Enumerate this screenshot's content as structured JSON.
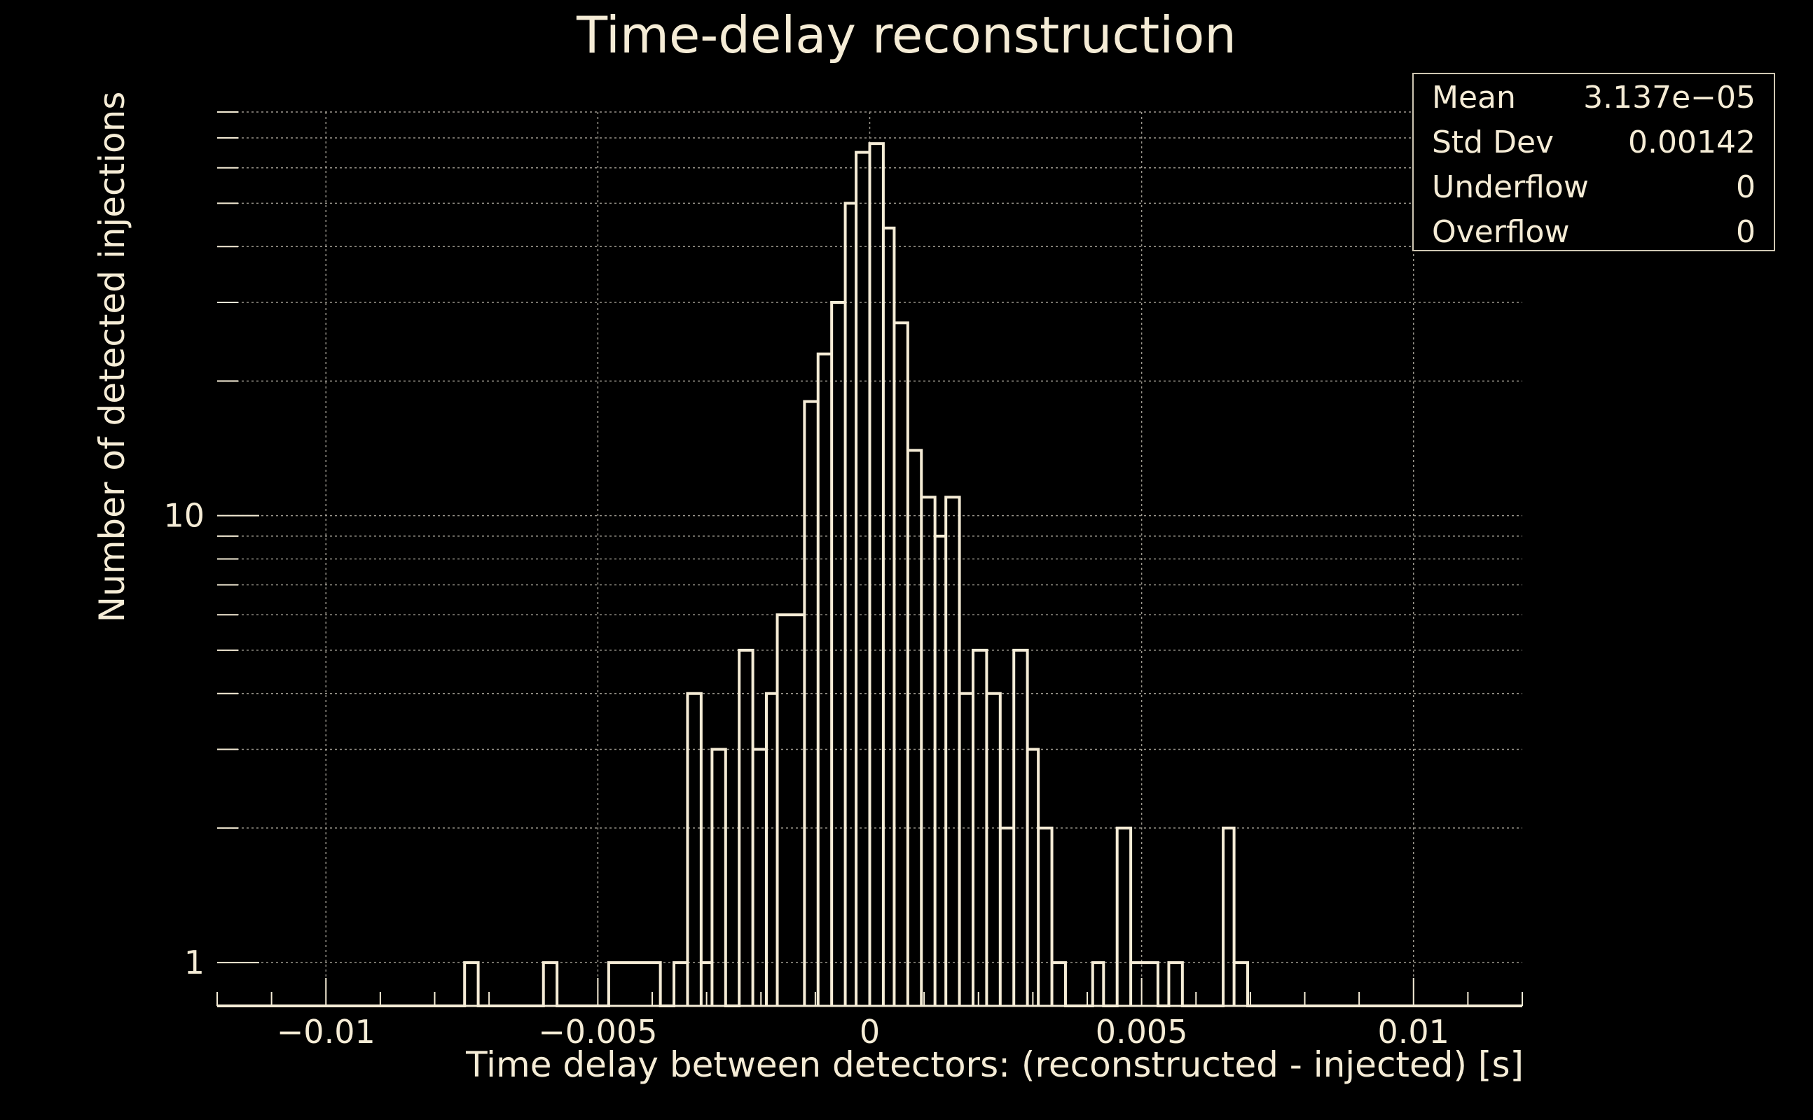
{
  "colors": {
    "background": "#000000",
    "foreground": "#f5ecd6",
    "grid": "#9a968c"
  },
  "chart_data": {
    "type": "histogram",
    "title": "Time-delay reconstruction",
    "xlabel": "Time delay between detectors: (reconstructed - injected) [s]",
    "ylabel": "Number of detected injections",
    "xlim": [
      -0.012,
      0.012
    ],
    "ylim": [
      0.8,
      80
    ],
    "yscale": "log",
    "grid": true,
    "x_tick_labels": [
      "−0.01",
      "−0.005",
      "0",
      "0.005",
      "0.01"
    ],
    "x_tick_values": [
      -0.01,
      -0.005,
      0,
      0.005,
      0.01
    ],
    "y_tick_labels": [
      "1",
      "10"
    ],
    "y_tick_values": [
      1,
      10
    ],
    "bins": [
      {
        "x0": -0.00745,
        "x1": -0.0072,
        "count": 1
      },
      {
        "x0": -0.006,
        "x1": -0.00575,
        "count": 1
      },
      {
        "x0": -0.0048,
        "x1": -0.00385,
        "count": 1
      },
      {
        "x0": -0.0036,
        "x1": -0.00335,
        "count": 1
      },
      {
        "x0": -0.00335,
        "x1": -0.0031,
        "count": 4
      },
      {
        "x0": -0.0031,
        "x1": -0.0029,
        "count": 1
      },
      {
        "x0": -0.0029,
        "x1": -0.00265,
        "count": 3
      },
      {
        "x0": -0.0024,
        "x1": -0.00215,
        "count": 5
      },
      {
        "x0": -0.00215,
        "x1": -0.0019,
        "count": 3
      },
      {
        "x0": -0.0019,
        "x1": -0.0017,
        "count": 4
      },
      {
        "x0": -0.0017,
        "x1": -0.0012,
        "count": 6
      },
      {
        "x0": -0.0012,
        "x1": -0.00095,
        "count": 18
      },
      {
        "x0": -0.00095,
        "x1": -0.0007,
        "count": 23
      },
      {
        "x0": -0.0007,
        "x1": -0.00045,
        "count": 30
      },
      {
        "x0": -0.00045,
        "x1": -0.00025,
        "count": 50
      },
      {
        "x0": -0.00025,
        "x1": 0.0,
        "count": 65
      },
      {
        "x0": 0.0,
        "x1": 0.00025,
        "count": 68
      },
      {
        "x0": 0.00025,
        "x1": 0.00045,
        "count": 44
      },
      {
        "x0": 0.00045,
        "x1": 0.0007,
        "count": 27
      },
      {
        "x0": 0.0007,
        "x1": 0.00095,
        "count": 14
      },
      {
        "x0": 0.00095,
        "x1": 0.0012,
        "count": 11
      },
      {
        "x0": 0.0012,
        "x1": 0.0014,
        "count": 9
      },
      {
        "x0": 0.0014,
        "x1": 0.00165,
        "count": 11
      },
      {
        "x0": 0.00165,
        "x1": 0.0019,
        "count": 4
      },
      {
        "x0": 0.0019,
        "x1": 0.00215,
        "count": 5
      },
      {
        "x0": 0.00215,
        "x1": 0.0024,
        "count": 4
      },
      {
        "x0": 0.0024,
        "x1": 0.00265,
        "count": 2
      },
      {
        "x0": 0.00265,
        "x1": 0.0029,
        "count": 5
      },
      {
        "x0": 0.0029,
        "x1": 0.0031,
        "count": 3
      },
      {
        "x0": 0.0031,
        "x1": 0.00335,
        "count": 2
      },
      {
        "x0": 0.00335,
        "x1": 0.0036,
        "count": 1
      },
      {
        "x0": 0.0041,
        "x1": 0.0043,
        "count": 1
      },
      {
        "x0": 0.00455,
        "x1": 0.0048,
        "count": 2
      },
      {
        "x0": 0.0048,
        "x1": 0.0053,
        "count": 1
      },
      {
        "x0": 0.0055,
        "x1": 0.00575,
        "count": 1
      },
      {
        "x0": 0.0065,
        "x1": 0.0067,
        "count": 2
      },
      {
        "x0": 0.0067,
        "x1": 0.00695,
        "count": 1
      }
    ]
  },
  "stats": [
    {
      "label": "Mean",
      "value": "3.137e−05"
    },
    {
      "label": "Std Dev",
      "value": "0.00142"
    },
    {
      "label": "Underflow",
      "value": "0"
    },
    {
      "label": "Overflow",
      "value": "0"
    }
  ]
}
